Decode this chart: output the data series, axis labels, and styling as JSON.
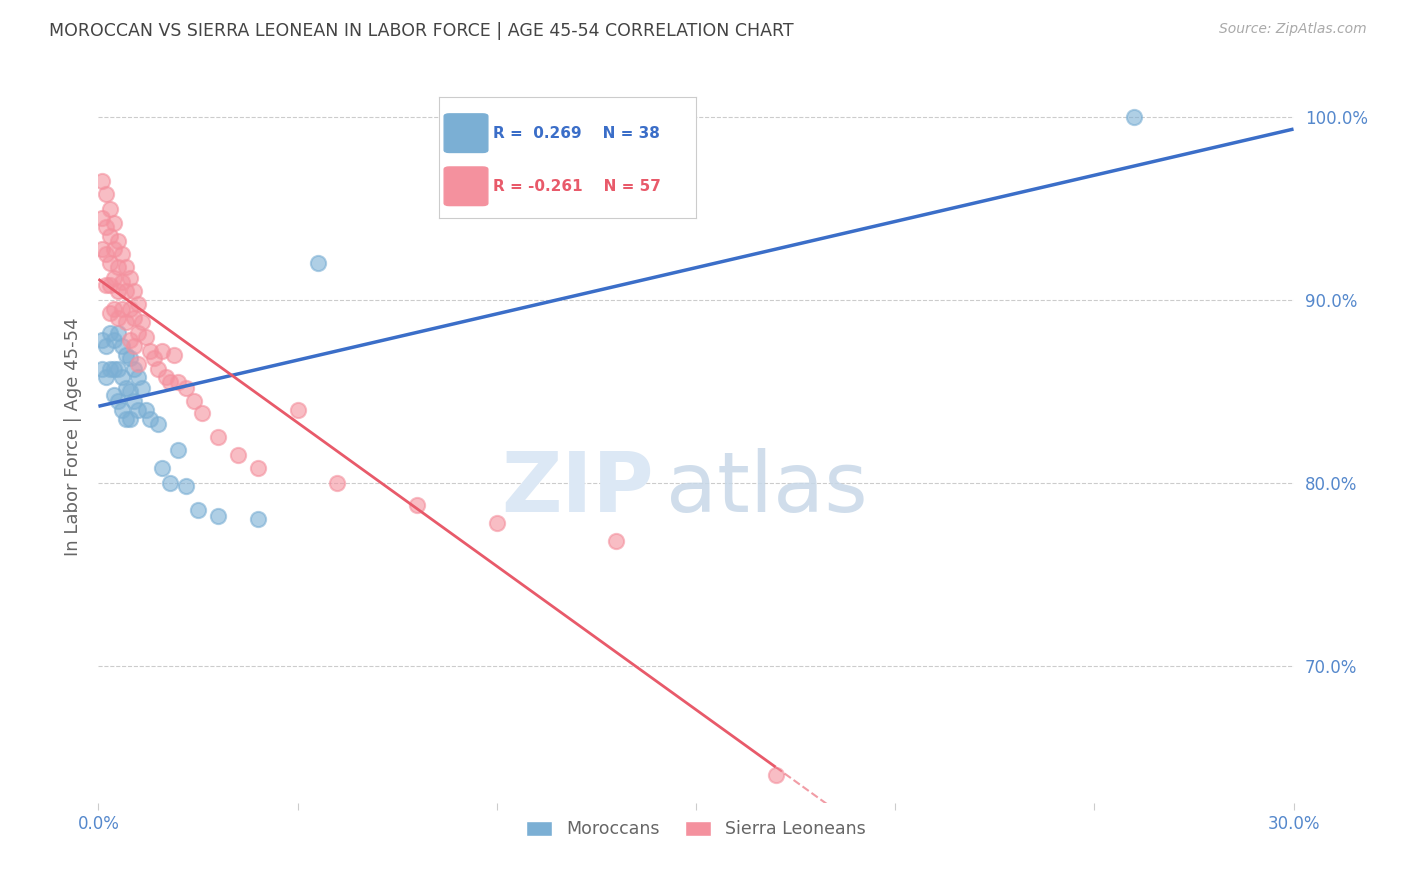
{
  "title": "MOROCCAN VS SIERRA LEONEAN IN LABOR FORCE | AGE 45-54 CORRELATION CHART",
  "source": "Source: ZipAtlas.com",
  "ylabel": "In Labor Force | Age 45-54",
  "xlabel_moroccan": "Moroccans",
  "xlabel_sierra": "Sierra Leoneans",
  "xmin": 0.0,
  "xmax": 0.3,
  "ymin": 0.625,
  "ymax": 1.025,
  "ytick_vals": [
    0.7,
    0.8,
    0.9,
    1.0
  ],
  "ytick_labels": [
    "70.0%",
    "80.0%",
    "90.0%",
    "100.0%"
  ],
  "xtick_vals": [
    0.0,
    0.05,
    0.1,
    0.15,
    0.2,
    0.25,
    0.3
  ],
  "xtick_labels": [
    "0.0%",
    "",
    "",
    "",
    "",
    "",
    "30.0%"
  ],
  "moroccan_R": 0.269,
  "moroccan_N": 38,
  "sierra_R": -0.261,
  "sierra_N": 57,
  "moroccan_color": "#7BAFD4",
  "sierra_color": "#F4919E",
  "moroccan_line_color": "#3B6EC8",
  "sierra_line_color": "#E85A6A",
  "grid_color": "#CCCCCC",
  "title_color": "#444444",
  "source_color": "#AAAAAA",
  "axis_label_color": "#666666",
  "tick_color": "#5588CC",
  "moroccan_x": [
    0.001,
    0.001,
    0.002,
    0.002,
    0.003,
    0.003,
    0.004,
    0.004,
    0.004,
    0.005,
    0.005,
    0.005,
    0.006,
    0.006,
    0.006,
    0.007,
    0.007,
    0.007,
    0.008,
    0.008,
    0.008,
    0.009,
    0.009,
    0.01,
    0.01,
    0.011,
    0.012,
    0.013,
    0.015,
    0.016,
    0.018,
    0.02,
    0.022,
    0.025,
    0.03,
    0.04,
    0.055,
    0.26
  ],
  "moroccan_y": [
    0.878,
    0.862,
    0.875,
    0.858,
    0.882,
    0.862,
    0.878,
    0.862,
    0.848,
    0.882,
    0.862,
    0.845,
    0.875,
    0.858,
    0.84,
    0.87,
    0.852,
    0.835,
    0.868,
    0.85,
    0.835,
    0.862,
    0.845,
    0.858,
    0.84,
    0.852,
    0.84,
    0.835,
    0.832,
    0.808,
    0.8,
    0.818,
    0.798,
    0.785,
    0.782,
    0.78,
    0.92,
    1.0
  ],
  "sierra_x": [
    0.001,
    0.001,
    0.001,
    0.002,
    0.002,
    0.002,
    0.002,
    0.003,
    0.003,
    0.003,
    0.003,
    0.003,
    0.004,
    0.004,
    0.004,
    0.004,
    0.005,
    0.005,
    0.005,
    0.005,
    0.006,
    0.006,
    0.006,
    0.007,
    0.007,
    0.007,
    0.008,
    0.008,
    0.008,
    0.009,
    0.009,
    0.009,
    0.01,
    0.01,
    0.01,
    0.011,
    0.012,
    0.013,
    0.014,
    0.015,
    0.016,
    0.017,
    0.018,
    0.019,
    0.02,
    0.022,
    0.024,
    0.026,
    0.03,
    0.035,
    0.04,
    0.05,
    0.06,
    0.08,
    0.1,
    0.13,
    0.17
  ],
  "sierra_y": [
    0.965,
    0.945,
    0.928,
    0.958,
    0.94,
    0.925,
    0.908,
    0.95,
    0.935,
    0.92,
    0.908,
    0.893,
    0.942,
    0.928,
    0.912,
    0.895,
    0.932,
    0.918,
    0.905,
    0.89,
    0.925,
    0.91,
    0.895,
    0.918,
    0.905,
    0.888,
    0.912,
    0.895,
    0.878,
    0.905,
    0.89,
    0.875,
    0.898,
    0.882,
    0.865,
    0.888,
    0.88,
    0.872,
    0.868,
    0.862,
    0.872,
    0.858,
    0.855,
    0.87,
    0.855,
    0.852,
    0.845,
    0.838,
    0.825,
    0.815,
    0.808,
    0.84,
    0.8,
    0.788,
    0.778,
    0.768,
    0.64
  ],
  "moroccan_line_x0": 0.0,
  "moroccan_line_x1": 0.3,
  "sierra_line_solid_x0": 0.0,
  "sierra_line_solid_x1": 0.17,
  "sierra_line_dash_x0": 0.17,
  "sierra_line_dash_x1": 0.3
}
